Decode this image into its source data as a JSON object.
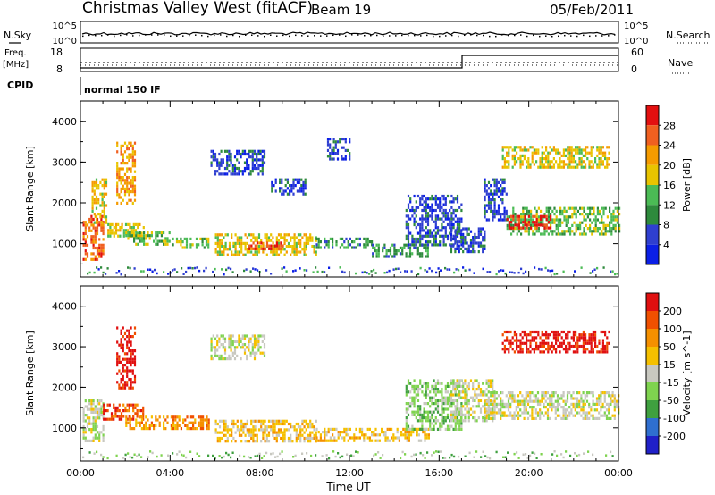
{
  "header": {
    "station": "Christmas Valley West (fitACF)",
    "beam": "Beam 19",
    "date": "05/Feb/2011"
  },
  "labels": {
    "nsky": "N.Sky",
    "nsky_ticks": [
      "10^5",
      "10^0"
    ],
    "nsearch": "N.Search",
    "nsearch_ticks": [
      "10^5",
      "10^0"
    ],
    "freq_top": "Freq.",
    "freq_bottom": "[MHz]",
    "freq_ticks": [
      "18",
      "8"
    ],
    "nave": "Nave",
    "nave_ticks": [
      "60",
      "0"
    ],
    "cpid": "CPID",
    "mode": "normal 150 IF",
    "time_axis": "Time UT",
    "range_axis": "Slant Range [km]"
  },
  "chart_data": [
    {
      "type": "heatmap",
      "quantity": "Power",
      "colorbar_label": "Power [dB]",
      "colorbar_ticks": [
        "28",
        "24",
        "20",
        "16",
        "12",
        "8",
        "4"
      ],
      "colors": [
        "#0b1fe6",
        "#2f3fd0",
        "#2e8a3c",
        "#4bbb55",
        "#e8c400",
        "#f59b00",
        "#f06020",
        "#e31010"
      ],
      "x_ticks": [
        "00:00",
        "04:00",
        "08:00",
        "12:00",
        "16:00",
        "20:00",
        "00:00"
      ],
      "xlim_hours": [
        0,
        24
      ],
      "y_ticks": [
        "1000",
        "2000",
        "3000",
        "4000"
      ],
      "ylim_km": [
        180,
        4500
      ],
      "regions": [
        {
          "x": [
            0.1,
            1.0
          ],
          "y": [
            600,
            1700
          ],
          "level": 6
        },
        {
          "x": [
            0.5,
            1.2
          ],
          "y": [
            1500,
            2600
          ],
          "level": 4
        },
        {
          "x": [
            1.2,
            2.8
          ],
          "y": [
            1200,
            1500
          ],
          "level": 4
        },
        {
          "x": [
            1.6,
            2.4
          ],
          "y": [
            2000,
            3500
          ],
          "level": 5
        },
        {
          "x": [
            2.0,
            4.0
          ],
          "y": [
            1000,
            1300
          ],
          "level": 3
        },
        {
          "x": [
            4.0,
            5.7
          ],
          "y": [
            900,
            1150
          ],
          "level": 3
        },
        {
          "x": [
            6.0,
            10.5
          ],
          "y": [
            700,
            1250
          ],
          "level": 4
        },
        {
          "x": [
            7.5,
            9.0
          ],
          "y": [
            850,
            1050
          ],
          "level": 6
        },
        {
          "x": [
            10.5,
            13.0
          ],
          "y": [
            900,
            1150
          ],
          "level": 2
        },
        {
          "x": [
            13.0,
            15.5
          ],
          "y": [
            700,
            1000
          ],
          "level": 2
        },
        {
          "x": [
            14.5,
            17.0
          ],
          "y": [
            1000,
            2200
          ],
          "level": 1
        },
        {
          "x": [
            16.5,
            18.0
          ],
          "y": [
            800,
            1400
          ],
          "level": 1
        },
        {
          "x": [
            18.0,
            19.0
          ],
          "y": [
            1600,
            2600
          ],
          "level": 1
        },
        {
          "x": [
            19.0,
            24.0
          ],
          "y": [
            1200,
            1900
          ],
          "level": 3
        },
        {
          "x": [
            19.0,
            21.0
          ],
          "y": [
            1400,
            1700
          ],
          "level": 7
        },
        {
          "x": [
            18.8,
            23.6
          ],
          "y": [
            2900,
            3400
          ],
          "level": 4
        },
        {
          "x": [
            5.8,
            8.2
          ],
          "y": [
            2700,
            3300
          ],
          "level": 1
        },
        {
          "x": [
            8.5,
            10.0
          ],
          "y": [
            2200,
            2600
          ],
          "level": 1
        },
        {
          "x": [
            11.0,
            12.0
          ],
          "y": [
            3100,
            3600
          ],
          "level": 1
        }
      ]
    },
    {
      "type": "heatmap",
      "quantity": "Velocity",
      "colorbar_label": "Velocity [m s^-1]",
      "colorbar_ticks": [
        "200",
        "100",
        "50",
        "15",
        "-15",
        "-50",
        "-100",
        "-200"
      ],
      "colors": [
        "#2020c8",
        "#2f6fd0",
        "#3fa03f",
        "#7fd34f",
        "#c8c8c0",
        "#f5c000",
        "#f59000",
        "#f05000",
        "#e01010"
      ],
      "x_ticks": [
        "00:00",
        "04:00",
        "08:00",
        "12:00",
        "16:00",
        "20:00",
        "00:00"
      ],
      "xlim_hours": [
        0,
        24
      ],
      "y_ticks": [
        "1000",
        "2000",
        "3000",
        "4000"
      ],
      "ylim_km": [
        180,
        4500
      ],
      "regions": [
        {
          "x": [
            0.1,
            1.0
          ],
          "y": [
            700,
            1700
          ],
          "level": 4
        },
        {
          "x": [
            1.0,
            2.8
          ],
          "y": [
            1200,
            1600
          ],
          "level": 7
        },
        {
          "x": [
            1.6,
            2.4
          ],
          "y": [
            2000,
            3500
          ],
          "level": 8
        },
        {
          "x": [
            2.0,
            5.7
          ],
          "y": [
            1000,
            1300
          ],
          "level": 6
        },
        {
          "x": [
            6.0,
            10.5
          ],
          "y": [
            700,
            1200
          ],
          "level": 5
        },
        {
          "x": [
            10.5,
            15.5
          ],
          "y": [
            650,
            1000
          ],
          "level": 5
        },
        {
          "x": [
            14.5,
            17.0
          ],
          "y": [
            1000,
            2200
          ],
          "level": 3
        },
        {
          "x": [
            16.5,
            18.5
          ],
          "y": [
            1200,
            2200
          ],
          "level": 4
        },
        {
          "x": [
            18.0,
            24.0
          ],
          "y": [
            1200,
            1900
          ],
          "level": 4
        },
        {
          "x": [
            18.8,
            23.6
          ],
          "y": [
            2900,
            3400
          ],
          "level": 8
        },
        {
          "x": [
            5.8,
            8.2
          ],
          "y": [
            2700,
            3300
          ],
          "level": 4
        }
      ]
    }
  ]
}
